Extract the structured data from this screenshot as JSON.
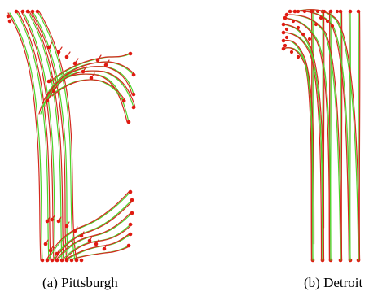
{
  "figure": {
    "panels": [
      {
        "caption": "(a) Pittsburgh"
      },
      {
        "caption": "(b) Detroit"
      }
    ]
  },
  "legend_colors": {
    "ground_truth": "#4cd32a",
    "prediction": "#d4281e",
    "endpoint": "#e01b12"
  }
}
